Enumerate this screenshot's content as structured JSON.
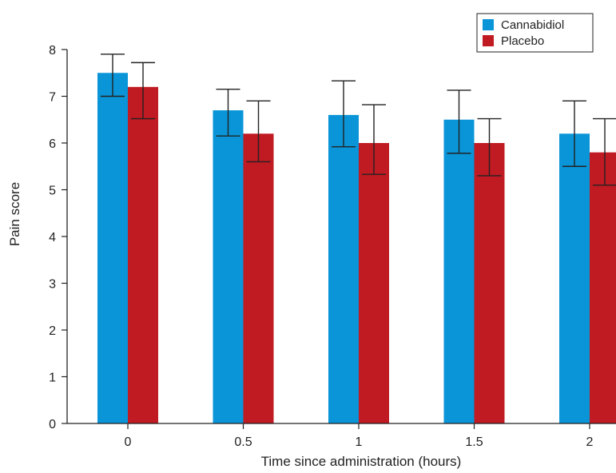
{
  "chart_data": {
    "type": "bar",
    "categories": [
      "0",
      "0.5",
      "1",
      "1.5",
      "2"
    ],
    "xlabel": "Time since administration (hours)",
    "ylabel": "Pain score",
    "ylim": [
      0,
      8
    ],
    "yticks": [
      "0",
      "1",
      "2",
      "3",
      "4",
      "5",
      "6",
      "7",
      "8"
    ],
    "grid": false,
    "legend_position": "top-right",
    "series": [
      {
        "name": "Cannabidiol",
        "color": "#0a95d8",
        "values": [
          7.5,
          6.7,
          6.6,
          6.5,
          6.2
        ],
        "error_low": [
          7.0,
          6.15,
          5.92,
          5.78,
          5.5
        ],
        "error_high": [
          7.9,
          7.15,
          7.33,
          7.13,
          6.9
        ]
      },
      {
        "name": "Placebo",
        "color": "#c01a22",
        "values": [
          7.2,
          6.2,
          6.0,
          6.0,
          5.8
        ],
        "error_low": [
          6.52,
          5.6,
          5.33,
          5.3,
          5.1
        ],
        "error_high": [
          7.72,
          6.9,
          6.82,
          6.52,
          6.52
        ]
      }
    ]
  }
}
